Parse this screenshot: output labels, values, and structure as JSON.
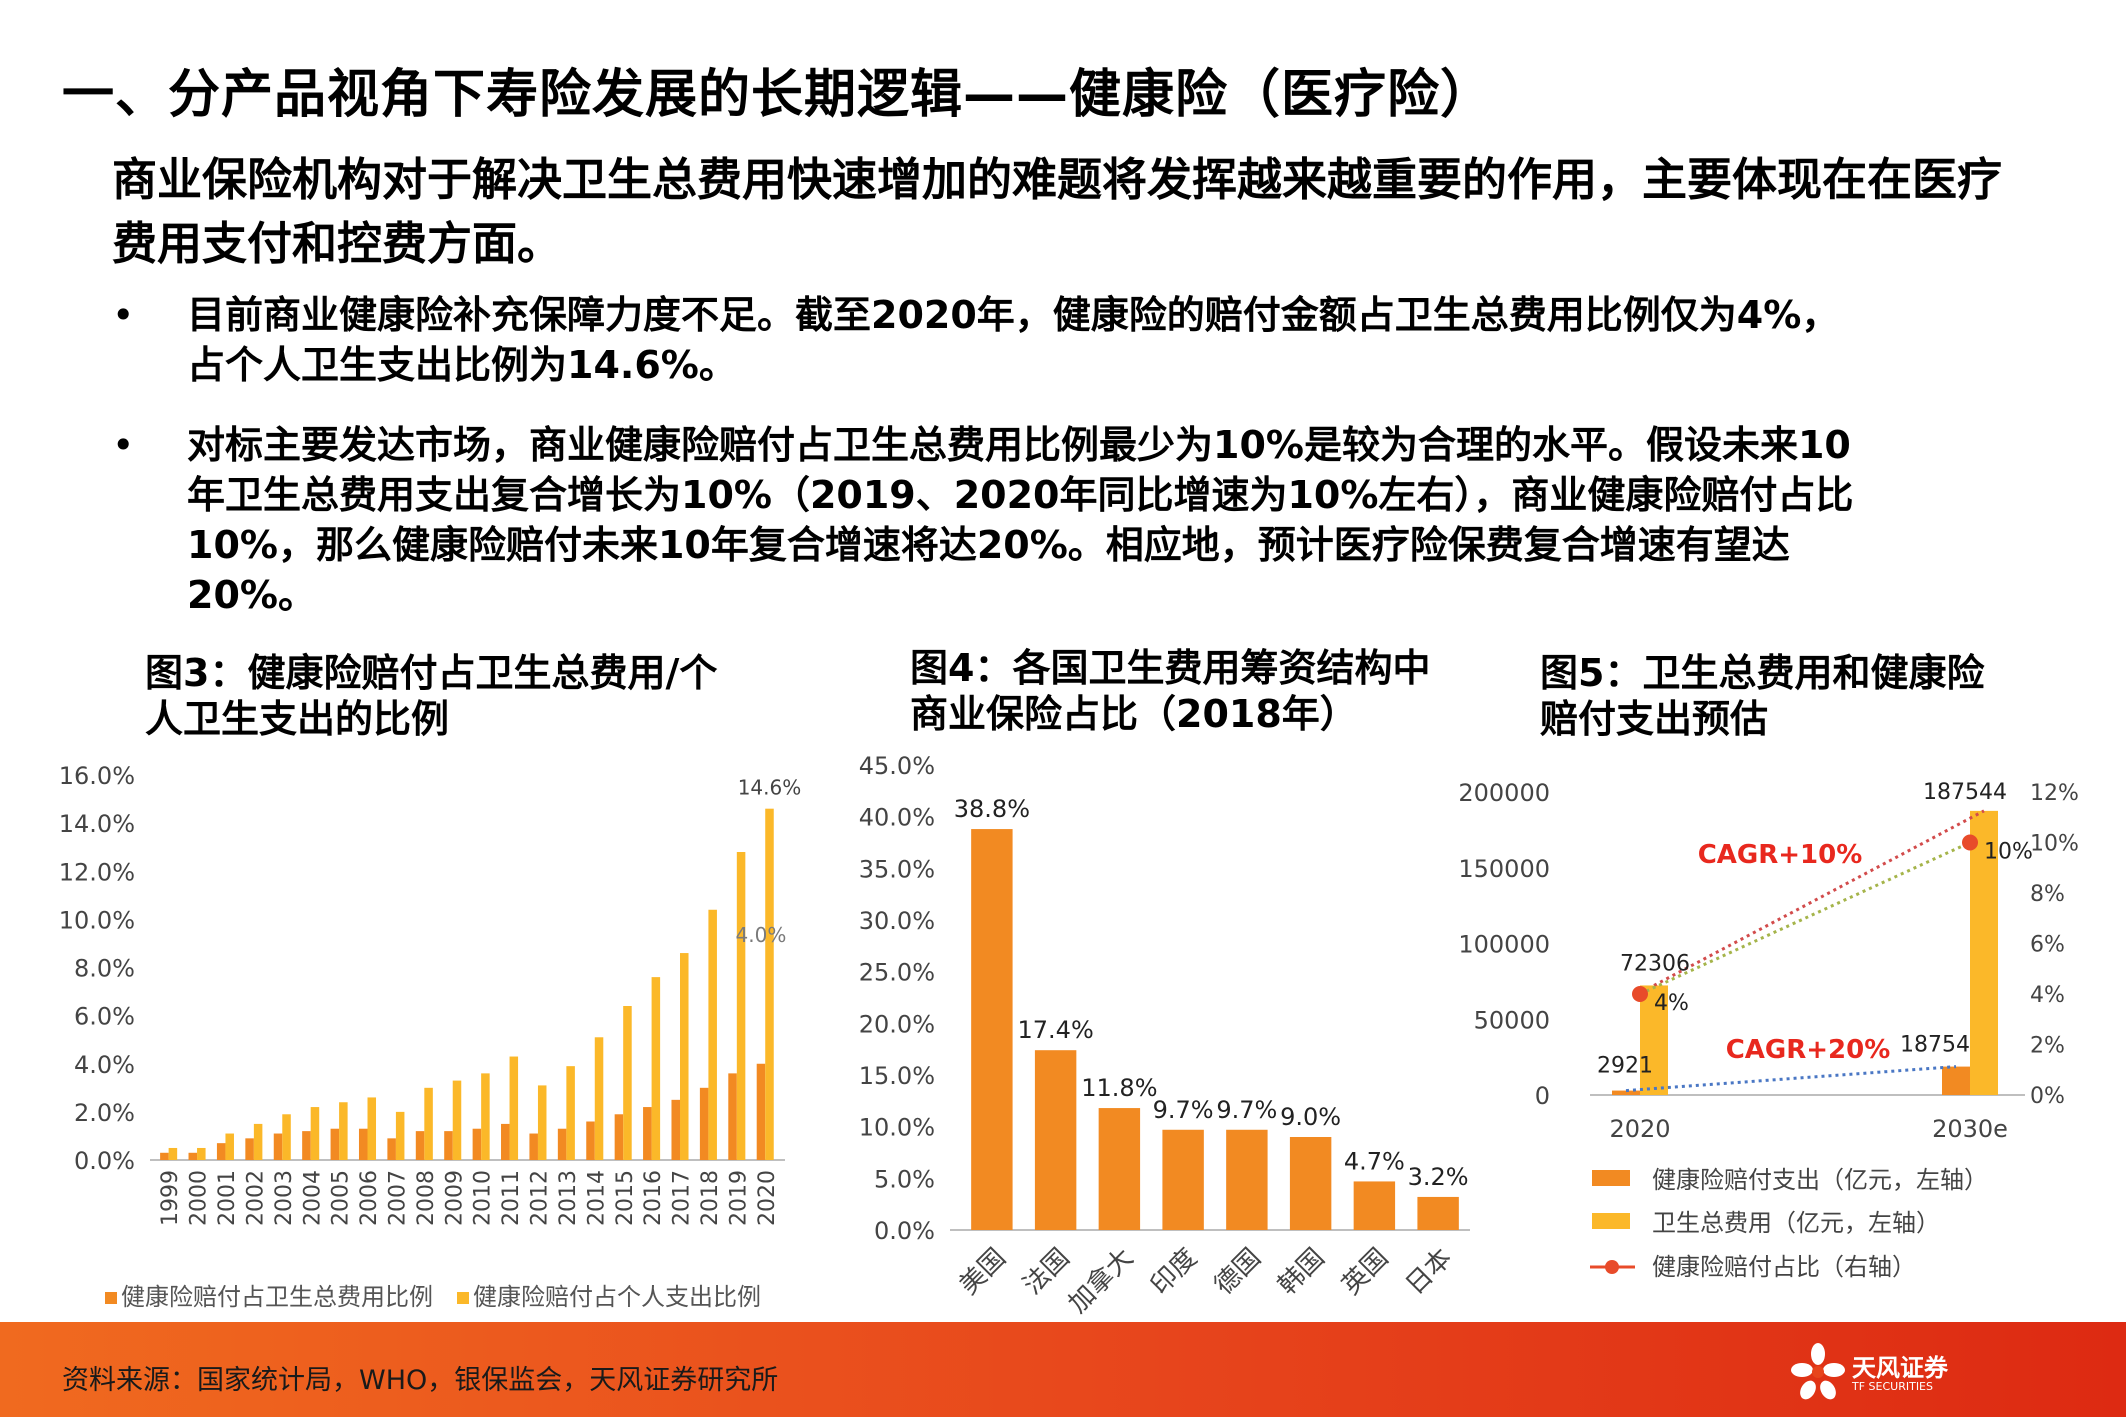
{
  "title": "一、分产品视角下寿险发展的长期逻辑——健康险（医疗险）",
  "lead": "商业保险机构对于解决卫生总费用快速增加的难题将发挥越来越重要的作用，主要体现在在医疗费用支付和控费方面。",
  "bullets": [
    {
      "marker": "•",
      "lines": [
        "目前商业健康险补充保障力度不足。截至2020年，健康险的赔付金额占卫生总费用比例仅为4%，",
        "占个人卫生支出比例为14.6%。"
      ]
    },
    {
      "marker": "•",
      "lines": [
        "对标主要发达市场，商业健康险赔付占卫生总费用比例最少为10%是较为合理的水平。假设未来10",
        "年卫生总费用支出复合增长为10%（2019、2020年同比增速为10%左右），商业健康险赔付占比",
        "10%，那么健康险赔付未来10年复合增速将达20%。相应地，预计医疗险保费复合增速有望达",
        "20%。"
      ]
    }
  ],
  "chart_data": [
    {
      "type": "bar",
      "title_lines": [
        "图3：健康险赔付占卫生总费用/个",
        "人卫生支出的比例"
      ],
      "categories": [
        "1999",
        "2000",
        "2001",
        "2002",
        "2003",
        "2004",
        "2005",
        "2006",
        "2007",
        "2008",
        "2009",
        "2010",
        "2011",
        "2012",
        "2013",
        "2014",
        "2015",
        "2016",
        "2017",
        "2018",
        "2019",
        "2020"
      ],
      "series": [
        {
          "name": "健康险赔付占卫生总费用比例",
          "color": "#f28a22",
          "values": [
            0.3,
            0.3,
            0.7,
            0.9,
            1.1,
            1.2,
            1.3,
            1.3,
            0.9,
            1.2,
            1.2,
            1.3,
            1.5,
            1.1,
            1.3,
            1.6,
            1.9,
            2.2,
            2.5,
            3.0,
            3.6,
            4.0
          ]
        },
        {
          "name": "健康险赔付占个人支出比例",
          "color": "#fbb829",
          "values": [
            0.5,
            0.5,
            1.1,
            1.5,
            1.9,
            2.2,
            2.4,
            2.6,
            2.0,
            3.0,
            3.3,
            3.6,
            4.3,
            3.1,
            3.9,
            5.1,
            6.4,
            7.6,
            8.6,
            10.4,
            12.8,
            14.6
          ]
        }
      ],
      "yticks": [
        "0.0%",
        "2.0%",
        "4.0%",
        "6.0%",
        "8.0%",
        "10.0%",
        "12.0%",
        "14.0%",
        "16.0%"
      ],
      "ylim": [
        0,
        16
      ],
      "data_labels": [
        {
          "series": 1,
          "index": 21,
          "text": "14.6%"
        },
        {
          "series": 0,
          "index": 21,
          "text": "4.0%"
        }
      ],
      "legend": "bottom"
    },
    {
      "type": "bar",
      "title_lines": [
        "图4：各国卫生费用筹资结构中",
        "商业保险占比（2018年）"
      ],
      "categories": [
        "美国",
        "法国",
        "加拿大",
        "印度",
        "德国",
        "韩国",
        "英国",
        "日本"
      ],
      "values": [
        38.8,
        17.4,
        11.8,
        9.7,
        9.7,
        9.0,
        4.7,
        3.2
      ],
      "data_labels": [
        "38.8%",
        "17.4%",
        "11.8%",
        "9.7%",
        "9.7%",
        "9.0%",
        "4.7%",
        "3.2%"
      ],
      "color": "#f28a22",
      "yticks": [
        "0.0%",
        "5.0%",
        "10.0%",
        "15.0%",
        "20.0%",
        "25.0%",
        "30.0%",
        "35.0%",
        "40.0%",
        "45.0%"
      ],
      "ylim": [
        0,
        45
      ]
    },
    {
      "type": "bar",
      "title_lines": [
        "图5：卫生总费用和健康险",
        "赔付支出预估"
      ],
      "categories": [
        "2020",
        "2030e"
      ],
      "series": [
        {
          "name": "健康险赔付支出（亿元，左轴）",
          "color": "#f28a22",
          "values": [
            2921,
            18754
          ],
          "labels": [
            "2921",
            "18754"
          ]
        },
        {
          "name": "卫生总费用（亿元，左轴）",
          "color": "#fbb829",
          "values": [
            72306,
            187544
          ],
          "labels": [
            "72306",
            "187544"
          ]
        },
        {
          "name": "健康险赔付占比（右轴）",
          "color": "#e84b2a",
          "values": [
            4,
            10
          ],
          "labels": [
            "4%",
            "10%"
          ]
        }
      ],
      "yticks_left": [
        "0",
        "50000",
        "100000",
        "150000",
        "200000"
      ],
      "ylim_left": [
        0,
        200000
      ],
      "yticks_right": [
        "0%",
        "2%",
        "4%",
        "6%",
        "8%",
        "10%",
        "12%"
      ],
      "ylim_right": [
        0,
        12
      ],
      "annotations": [
        {
          "text": "CAGR+10%",
          "color": "#e8281e"
        },
        {
          "text": "CAGR+20%",
          "color": "#e8281e"
        }
      ],
      "legend": "bottom"
    }
  ],
  "footer": {
    "source": "资料来源：国家统计局，WHO，银保监会，天风证券研究所",
    "logo_name": "天风证券",
    "logo_sub": "TF SECURITIES"
  }
}
